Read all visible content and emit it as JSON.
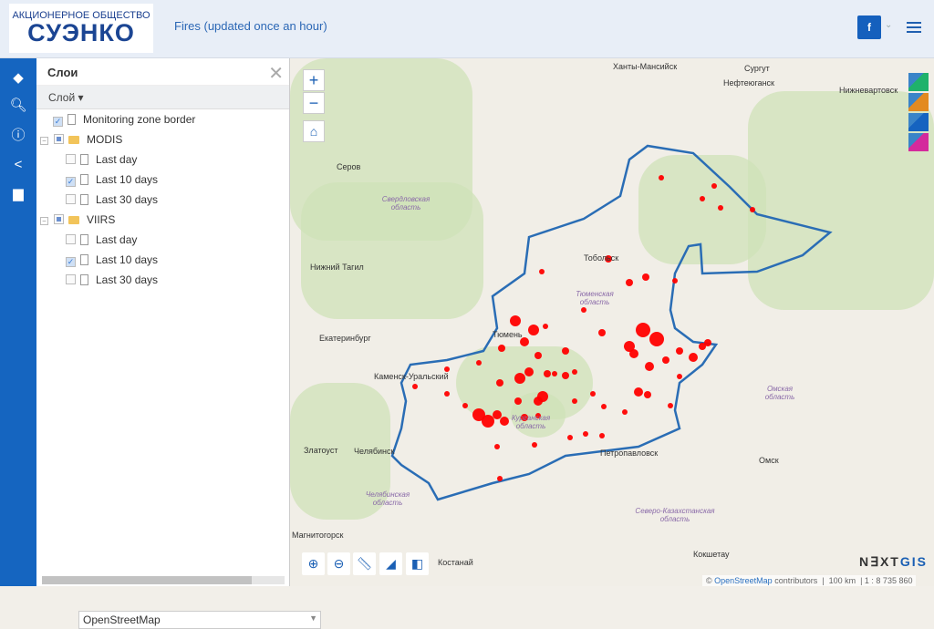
{
  "header": {
    "logo_top": "АКЦИОНЕРНОЕ ОБЩЕСТВО",
    "logo_main": "СУЭНКО",
    "title": "Fires (updated once an hour)",
    "fb_label": "f"
  },
  "rail": {
    "icons": [
      "layers-icon",
      "search-icon",
      "info-icon",
      "share-icon",
      "print-icon"
    ]
  },
  "panel": {
    "title": "Слои",
    "layer_menu": "Слой ▾",
    "tree": [
      {
        "label": "Monitoring zone border",
        "checked": true,
        "level": 0,
        "type": "layer"
      },
      {
        "label": "MODIS",
        "checked": "partial",
        "level": 0,
        "type": "group"
      },
      {
        "label": "Last day",
        "checked": false,
        "level": 1,
        "type": "layer"
      },
      {
        "label": "Last 10 days",
        "checked": true,
        "level": 1,
        "type": "layer"
      },
      {
        "label": "Last 30 days",
        "checked": false,
        "level": 1,
        "type": "layer"
      },
      {
        "label": "VIIRS",
        "checked": "partial",
        "level": 0,
        "type": "group"
      },
      {
        "label": "Last day",
        "checked": false,
        "level": 1,
        "type": "layer"
      },
      {
        "label": "Last 10 days",
        "checked": true,
        "level": 1,
        "type": "layer"
      },
      {
        "label": "Last 30 days",
        "checked": false,
        "level": 1,
        "type": "layer"
      }
    ],
    "basemap": "OpenStreetMap"
  },
  "map": {
    "cities": [
      "Ханты-Мансийск",
      "Сургут",
      "Нефтеюганск",
      "Нижневартовск",
      "Серов",
      "Нижний Тагил",
      "Тобольск",
      "Тюмень",
      "Екатеринбург",
      "Каменск-Уральский",
      "Златоуст",
      "Челябинск",
      "Петропавловск",
      "Омск",
      "Костанай",
      "Кокшетау",
      "Магнитогорск"
    ],
    "regions": [
      "Свердловская область",
      "Тюменская область",
      "Курганская область",
      "Омская область",
      "Челябинская область",
      "Северо-Казахстанская область"
    ],
    "colors": {
      "boundary": "#2a6db5",
      "fire": "#ff0000",
      "forest": "#cfe2b8"
    },
    "attribution_prefix": "© ",
    "attribution_link": "OpenStreetMap",
    "attribution_suffix": " contributors",
    "scale_bar": "100 km",
    "scale_ratio": "1 : 8 735 860",
    "brand_a": "N∃XT",
    "brand_b": "GIS"
  }
}
